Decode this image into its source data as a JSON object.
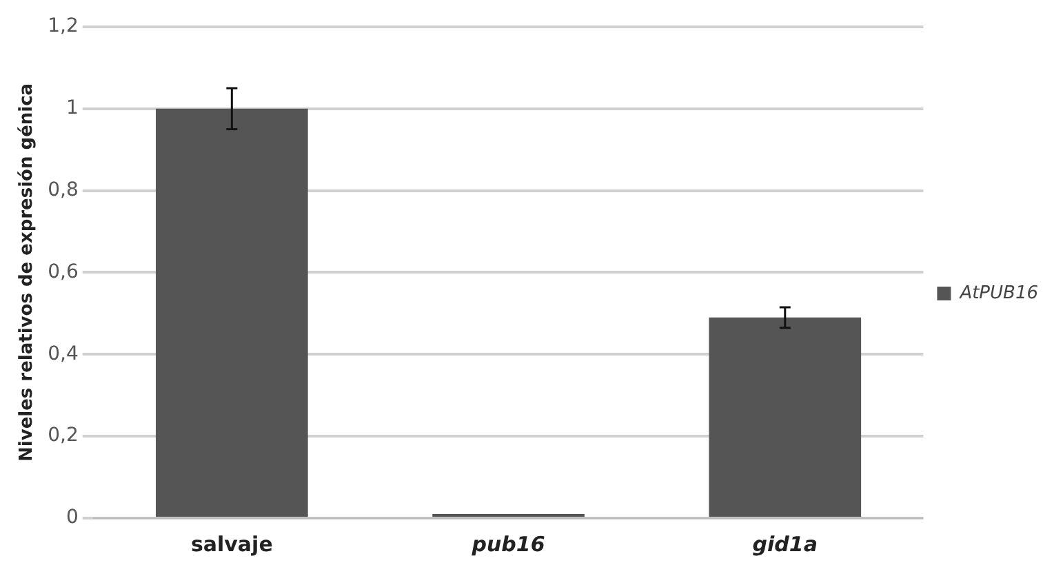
{
  "chart_data": {
    "type": "bar",
    "ylabel": "Niveles relativos de expresión génica",
    "categories": [
      "salvaje",
      "pub16",
      "gid1a"
    ],
    "series": [
      {
        "name": "AtPUB16",
        "color": "#555555",
        "values": [
          1.0,
          0.01,
          0.49
        ],
        "errors": [
          0.05,
          null,
          0.025
        ]
      }
    ],
    "ylim": [
      0,
      1.2
    ],
    "yticks": [
      0,
      {
        "value": 0.2,
        "label": "0,2"
      },
      {
        "value": 0.4,
        "label": "0,4"
      },
      {
        "value": 0.6,
        "label": "0,6"
      },
      {
        "value": 0.8,
        "label": "0,8"
      },
      1,
      {
        "value": 1.2,
        "label": "1,2"
      }
    ],
    "grid": "y",
    "legend": "right"
  }
}
